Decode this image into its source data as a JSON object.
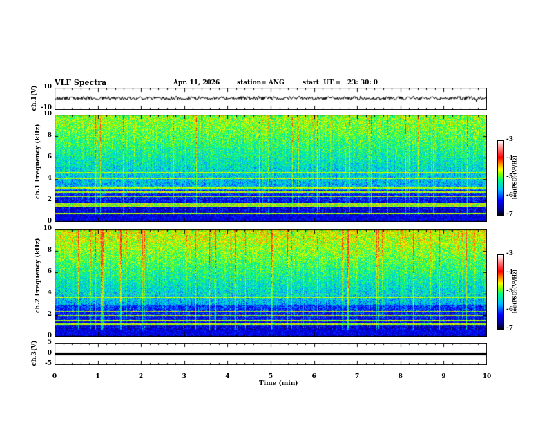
{
  "header": {
    "title": "VLF Spectra",
    "date": "Apr. 11, 2026",
    "station": "station= ANG",
    "start": "start  UT =   23: 30: 0"
  },
  "colors": {
    "trace": "#000000",
    "colormap": [
      "#000000",
      "#00008b",
      "#0000ff",
      "#00bfff",
      "#00ff80",
      "#ffff00",
      "#ff0000",
      "#ffffff"
    ]
  },
  "chart_data": [
    {
      "type": "line",
      "name": "ch1 waveform",
      "ylabel": "ch.1(V)",
      "ylim": [
        -10,
        10
      ],
      "yticks": [
        "10",
        "-10"
      ],
      "xlim": [
        0,
        10
      ],
      "description_values": {
        "baseline": 0
      }
    },
    {
      "type": "heatmap",
      "name": "ch1 spectrogram",
      "ylabel": "ch.1 Frequency (kHz)",
      "ylim": [
        0,
        10
      ],
      "yticks": [
        "0",
        "2",
        "4",
        "6",
        "8",
        "10"
      ],
      "xlim": [
        0,
        10
      ],
      "colorbar": {
        "label": "log(PSD)(V²/Hz)",
        "range": [
          -7,
          -3
        ],
        "ticks": [
          "-3",
          "-4",
          "-5",
          "-6",
          "-7"
        ]
      },
      "lines_khz": [
        0.8,
        1.5,
        1.7,
        2.4,
        2.8,
        3.2,
        3.3,
        4.1,
        4.6
      ]
    },
    {
      "type": "heatmap",
      "name": "ch2 spectrogram",
      "ylabel": "ch.2 Frequency (kHz)",
      "ylim": [
        0,
        10
      ],
      "yticks": [
        "0",
        "2",
        "4",
        "6",
        "8",
        "10"
      ],
      "xlim": [
        0,
        10
      ],
      "colorbar": {
        "label": "log(PSD)(V²/Hz)",
        "range": [
          -7,
          -3
        ],
        "ticks": [
          "-3",
          "-4",
          "-5",
          "-6",
          "-7"
        ]
      },
      "lines_khz": [
        1.2,
        1.5,
        2.0,
        2.4,
        3.7,
        4.0
      ]
    },
    {
      "type": "line",
      "name": "ch3 waveform",
      "ylabel": "ch.3(V)",
      "ylim": [
        -5,
        5
      ],
      "yticks": [
        "5",
        "0",
        "-5"
      ],
      "xlim": [
        0,
        10
      ],
      "description_values": {
        "baseline": -1.5
      }
    }
  ],
  "xaxis": {
    "label": "Time (min)",
    "ticks": [
      "0",
      "1",
      "2",
      "3",
      "4",
      "5",
      "6",
      "7",
      "8",
      "9",
      "10"
    ]
  }
}
